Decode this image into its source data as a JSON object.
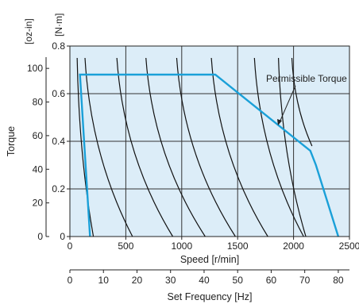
{
  "chart_data": {
    "type": "line",
    "ylabel": "Torque",
    "y_units_outer": "[oz-in]",
    "y_units_inner": "[N·m]",
    "xlabel": "Speed [r/min]",
    "x2label": "Set Frequency [Hz]",
    "xlim": [
      0,
      2500
    ],
    "ylim": [
      0,
      0.8
    ],
    "yticks_nm": [
      "0",
      "0.2",
      "0.4",
      "0.6",
      "0.8"
    ],
    "yticks_ozin": [
      "0",
      "20",
      "40",
      "60",
      "80",
      "100"
    ],
    "xticks": [
      "0",
      "500",
      "1000",
      "1500",
      "2000",
      "2500"
    ],
    "x2ticks": [
      "0",
      "10",
      "20",
      "30",
      "40",
      "50",
      "60",
      "70",
      "80"
    ],
    "grid": true,
    "annotation": "Permissible Torque",
    "permissible_torque": {
      "color": "#1aa0d8",
      "x": [
        180,
        90,
        1300,
        2150,
        2200,
        2400
      ],
      "y": [
        0,
        0.68,
        0.68,
        0.36,
        0.3,
        0
      ]
    },
    "speed_curves": {
      "color": "#111111",
      "top_speeds": [
        65,
        135,
        420,
        680,
        955,
        1265,
        1650,
        1865,
        1985
      ],
      "bottom_speeds": [
        210,
        560,
        920,
        1210,
        1480,
        1770,
        2090,
        2110
      ],
      "y_top": 0.75
    },
    "background_color": "#dcedf8"
  }
}
